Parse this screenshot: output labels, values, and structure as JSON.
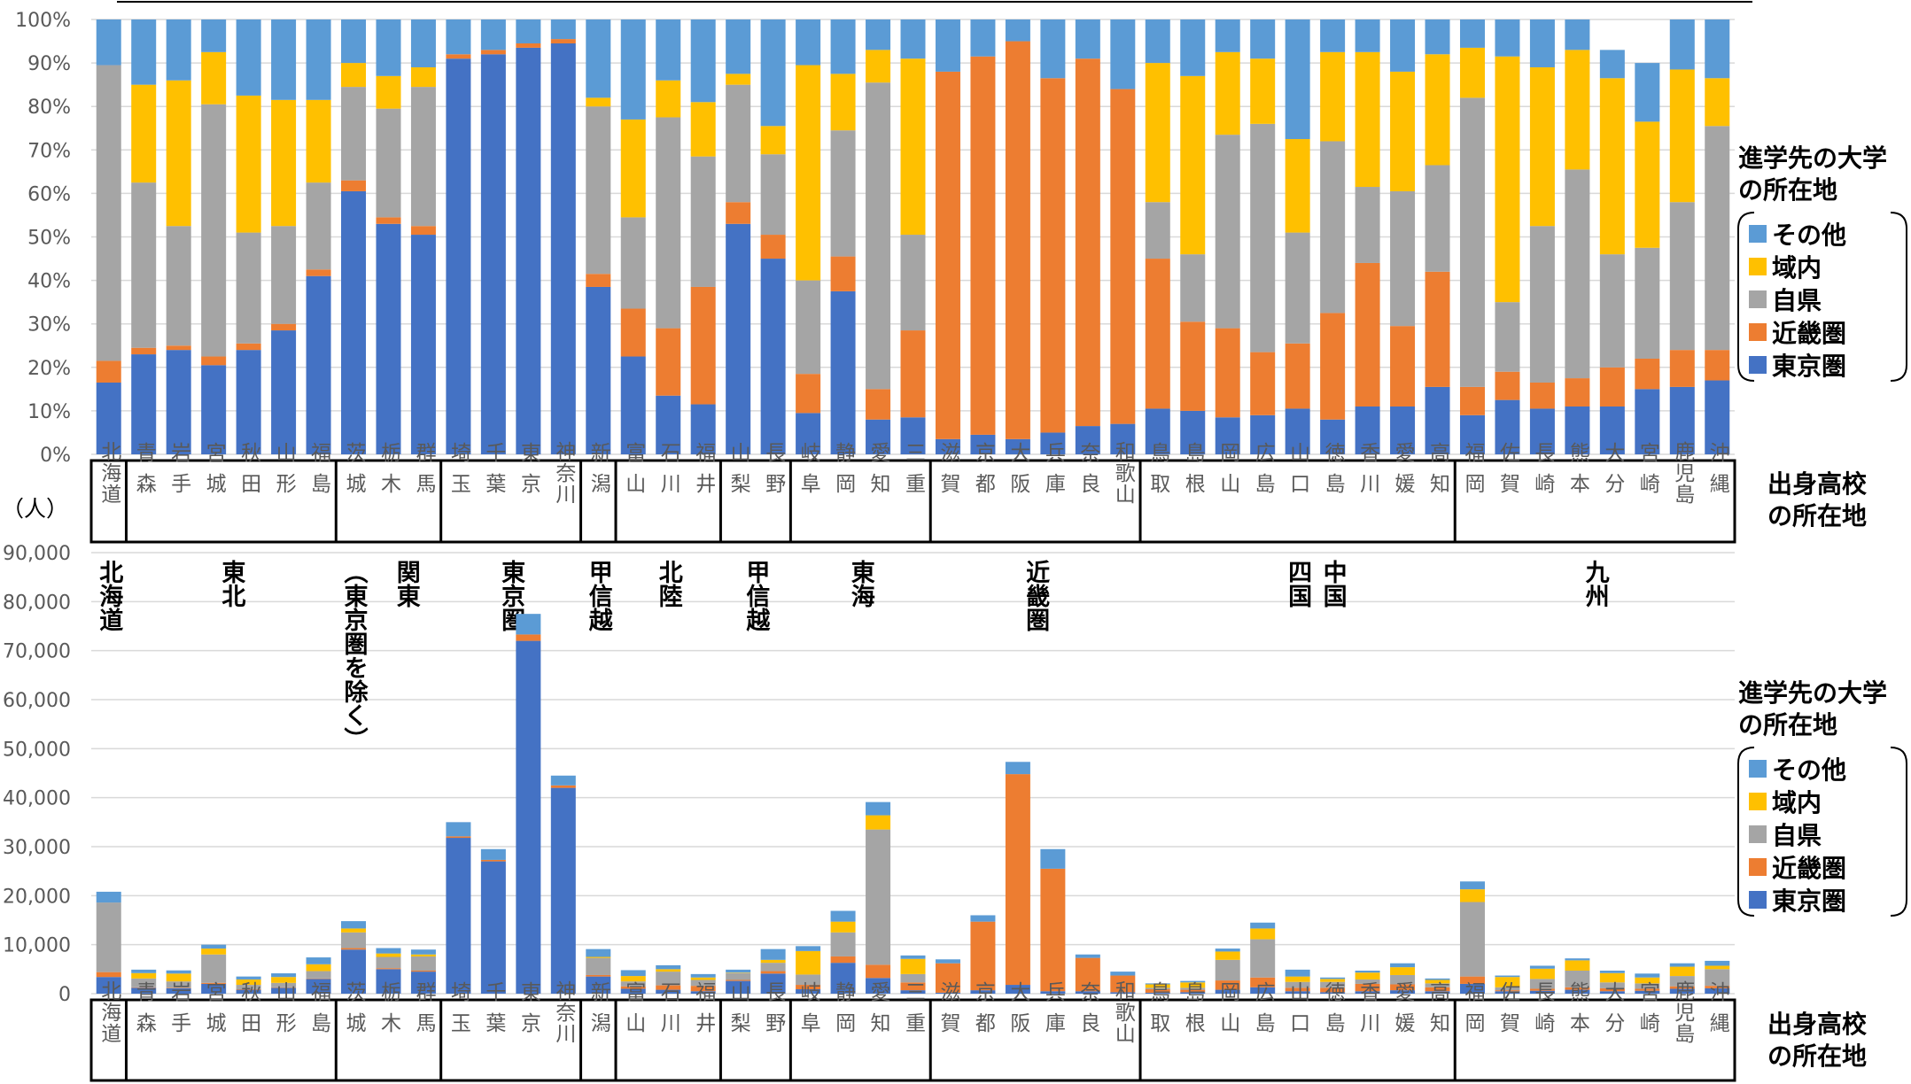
{
  "colors": {
    "tokyo": "#4472C4",
    "kinki": "#ED7D31",
    "jiken": "#A5A5A5",
    "ikinai": "#FFC000",
    "sonota": "#5B9BD5",
    "grid": "#D9D9D9",
    "frame": "#000000"
  },
  "legend": {
    "title_lines": [
      "進学先の大学",
      "の所在地"
    ],
    "entries": [
      {
        "key": "sonota",
        "label": "その他"
      },
      {
        "key": "ikinai",
        "label": "域内"
      },
      {
        "key": "jiken",
        "label": "自県"
      },
      {
        "key": "kinki",
        "label": "近畿圏"
      },
      {
        "key": "tokyo",
        "label": "東京圏"
      }
    ]
  },
  "axis_title_lines": [
    "出身高校",
    "の所在地"
  ],
  "unit_label": "（人）",
  "region_labels": [
    {
      "text": "北海道",
      "from": 0,
      "to": 0
    },
    {
      "text": "東北",
      "from": 1,
      "to": 6
    },
    {
      "text": "（東京圏を除く）",
      "from": 7,
      "to": 7
    },
    {
      "text": "関東",
      "from": 8,
      "to": 9
    },
    {
      "text": "東京圏",
      "from": 10,
      "to": 13
    },
    {
      "text": "甲信越",
      "from": 14,
      "to": 14
    },
    {
      "text": "北陸",
      "from": 15,
      "to": 17
    },
    {
      "text": "甲信越",
      "from": 18,
      "to": 19
    },
    {
      "text": "東海",
      "from": 20,
      "to": 23
    },
    {
      "text": "近畿圏",
      "from": 24,
      "to": 29
    },
    {
      "text": "四国",
      "from": 34,
      "to": 34
    },
    {
      "text": "中国",
      "from": 35,
      "to": 35
    },
    {
      "text": "九州",
      "from": 39,
      "to": 46
    }
  ],
  "groups": [
    [
      0,
      0
    ],
    [
      1,
      6
    ],
    [
      7,
      9
    ],
    [
      10,
      13
    ],
    [
      14,
      14
    ],
    [
      15,
      17
    ],
    [
      18,
      19
    ],
    [
      20,
      23
    ],
    [
      24,
      29
    ],
    [
      30,
      38
    ],
    [
      39,
      46
    ]
  ],
  "chart_data": [
    {
      "type": "bar",
      "stacked": true,
      "percent": true,
      "categories": [
        "北海道",
        "青森",
        "岩手",
        "宮城",
        "秋田",
        "山形",
        "福島",
        "茨城",
        "栃木",
        "群馬",
        "埼玉",
        "千葉",
        "東京",
        "神奈川",
        "新潟",
        "富山",
        "石川",
        "福井",
        "山梨",
        "長野",
        "岐阜",
        "静岡",
        "愛知",
        "三重",
        "滋賀",
        "京都",
        "大阪",
        "兵庫",
        "奈良",
        "和歌山",
        "鳥取",
        "島根",
        "岡山",
        "広島",
        "山口",
        "徳島",
        "香川",
        "愛媛",
        "高知",
        "福岡",
        "佐賀",
        "長崎",
        "熊本",
        "大分",
        "宮崎",
        "鹿児島",
        "沖縄"
      ],
      "ylim": [
        0,
        100
      ],
      "yticks": [
        0,
        10,
        20,
        30,
        40,
        50,
        60,
        70,
        80,
        90,
        100
      ],
      "grid": true,
      "series": [
        {
          "name": "東京圏",
          "key": "tokyo",
          "values": [
            16.5,
            23,
            24,
            20.5,
            24,
            28.5,
            41,
            60.5,
            53,
            50.5,
            91,
            92,
            93.5,
            94.5,
            38.5,
            22.5,
            13.5,
            11.5,
            53,
            45,
            9.5,
            37.5,
            8,
            8.5,
            3.5,
            4.5,
            3.5,
            5,
            6.5,
            7,
            10.5,
            10,
            8.5,
            9,
            10.5,
            8,
            11,
            11,
            15.5,
            9,
            12.5,
            10.5,
            11,
            11,
            15,
            15.5,
            17
          ]
        },
        {
          "name": "近畿圏",
          "key": "kinki",
          "values": [
            5,
            1.5,
            1,
            2,
            1.5,
            1.5,
            1.5,
            2.5,
            1.5,
            2,
            1,
            1,
            1,
            1,
            3,
            11,
            15.5,
            27,
            5,
            5.5,
            9,
            8,
            7,
            20,
            84.5,
            87,
            91.5,
            81.5,
            84.5,
            77,
            34.5,
            20.5,
            20.5,
            14.5,
            15,
            24.5,
            33,
            18.5,
            26.5,
            6.5,
            6.5,
            6,
            6.5,
            9,
            7,
            8.5,
            7
          ]
        },
        {
          "name": "自県",
          "key": "jiken",
          "values": [
            68,
            38,
            27.5,
            58,
            25.5,
            22.5,
            20,
            21.5,
            25,
            32,
            0,
            0,
            0,
            0,
            38.5,
            21,
            48.5,
            30,
            27,
            18.5,
            21.5,
            29,
            70.5,
            22,
            0,
            0,
            0,
            0,
            0,
            0,
            13,
            15.5,
            44.5,
            52.5,
            25.5,
            39.5,
            17.5,
            31,
            24.5,
            66.5,
            16,
            36,
            48,
            26,
            25.5,
            34,
            51.5
          ]
        },
        {
          "name": "域内",
          "key": "ikinai",
          "values": [
            0,
            22.5,
            33.5,
            12,
            31.5,
            29,
            19,
            5.5,
            7.5,
            4.5,
            0,
            0,
            0,
            0,
            2,
            22.5,
            8.5,
            12.5,
            2.5,
            6.5,
            49.5,
            13,
            7.5,
            40.5,
            0,
            0,
            0,
            0,
            0,
            0,
            32,
            41,
            19,
            15,
            21.5,
            20.5,
            31,
            27.5,
            25.5,
            11.5,
            56.5,
            36.5,
            27.5,
            40.5,
            29,
            30.5,
            11
          ]
        },
        {
          "name": "その他",
          "key": "sonota",
          "values": [
            10.5,
            15,
            14,
            7.5,
            17.5,
            18.5,
            18.5,
            10,
            13,
            11,
            8,
            7,
            5.5,
            4.5,
            18,
            23,
            14,
            19,
            12.5,
            24.5,
            10.5,
            12.5,
            7,
            9,
            12,
            8.5,
            5,
            13.5,
            9,
            16,
            10,
            13,
            7.5,
            9,
            27.5,
            7.5,
            7.5,
            12,
            8,
            6.5,
            8.5,
            11,
            7,
            6.5,
            13.5,
            11.5,
            13.5
          ]
        }
      ]
    },
    {
      "type": "bar",
      "stacked": true,
      "categories": [
        "北海道",
        "青森",
        "岩手",
        "宮城",
        "秋田",
        "山形",
        "福島",
        "茨城",
        "栃木",
        "群馬",
        "埼玉",
        "千葉",
        "東京",
        "神奈川",
        "新潟",
        "富山",
        "石川",
        "福井",
        "山梨",
        "長野",
        "岐阜",
        "静岡",
        "愛知",
        "三重",
        "滋賀",
        "京都",
        "大阪",
        "兵庫",
        "奈良",
        "和歌山",
        "鳥取",
        "島根",
        "岡山",
        "広島",
        "山口",
        "徳島",
        "香川",
        "愛媛",
        "高知",
        "福岡",
        "佐賀",
        "長崎",
        "熊本",
        "大分",
        "宮崎",
        "鹿児島",
        "沖縄"
      ],
      "ylim": [
        0,
        90000
      ],
      "yticks": [
        0,
        10000,
        20000,
        30000,
        40000,
        50000,
        60000,
        70000,
        80000,
        90000
      ],
      "grid": true,
      "series": [
        {
          "name": "東京圏",
          "key": "tokyo",
          "values": [
            3400,
            1200,
            1100,
            2000,
            800,
            1200,
            3000,
            9000,
            5000,
            4500,
            31800,
            27000,
            72000,
            42000,
            3500,
            1000,
            800,
            500,
            2600,
            4100,
            900,
            6300,
            3200,
            700,
            200,
            700,
            1800,
            500,
            500,
            300,
            200,
            300,
            800,
            1300,
            500,
            300,
            500,
            700,
            500,
            2000,
            500,
            600,
            800,
            500,
            600,
            1000,
            1100
          ]
        },
        {
          "name": "近畿圏",
          "key": "kinki",
          "values": [
            1000,
            100,
            100,
            200,
            100,
            100,
            100,
            300,
            200,
            200,
            300,
            300,
            1300,
            500,
            300,
            500,
            900,
            1100,
            200,
            500,
            900,
            1300,
            2700,
            1600,
            6000,
            14000,
            43000,
            25000,
            6800,
            3400,
            700,
            500,
            1900,
            2000,
            700,
            900,
            1500,
            1200,
            800,
            1500,
            200,
            400,
            500,
            600,
            400,
            500,
            500
          ]
        },
        {
          "name": "自県",
          "key": "jiken",
          "values": [
            14200,
            1800,
            1300,
            5800,
            900,
            900,
            1500,
            3200,
            2300,
            2900,
            0,
            0,
            0,
            0,
            3500,
            1000,
            2800,
            1200,
            1400,
            1700,
            2100,
            4900,
            27600,
            1700,
            0,
            0,
            0,
            0,
            0,
            0,
            300,
            400,
            4200,
            7800,
            1200,
            1200,
            900,
            1900,
            800,
            15200,
            600,
            2000,
            3400,
            1200,
            1100,
            2100,
            3400
          ]
        },
        {
          "name": "域内",
          "key": "ikinai",
          "values": [
            0,
            1100,
            1600,
            1200,
            1100,
            1200,
            1400,
            800,
            700,
            400,
            0,
            0,
            0,
            0,
            200,
            1100,
            500,
            500,
            100,
            600,
            4800,
            2200,
            2900,
            3100,
            0,
            0,
            0,
            0,
            0,
            0,
            700,
            1100,
            1700,
            2200,
            1100,
            600,
            1400,
            1600,
            700,
            2600,
            2100,
            2100,
            2100,
            1900,
            1200,
            1900,
            700
          ]
        },
        {
          "name": "その他",
          "key": "sonota",
          "values": [
            2200,
            700,
            650,
            800,
            600,
            750,
            1400,
            1500,
            1100,
            1000,
            2900,
            2200,
            4200,
            2000,
            1600,
            1200,
            800,
            700,
            600,
            2200,
            1000,
            2200,
            2700,
            700,
            800,
            1300,
            2500,
            4000,
            700,
            800,
            200,
            300,
            600,
            1200,
            1400,
            300,
            400,
            800,
            300,
            1600,
            300,
            600,
            400,
            500,
            800,
            700,
            1000
          ]
        }
      ]
    }
  ]
}
